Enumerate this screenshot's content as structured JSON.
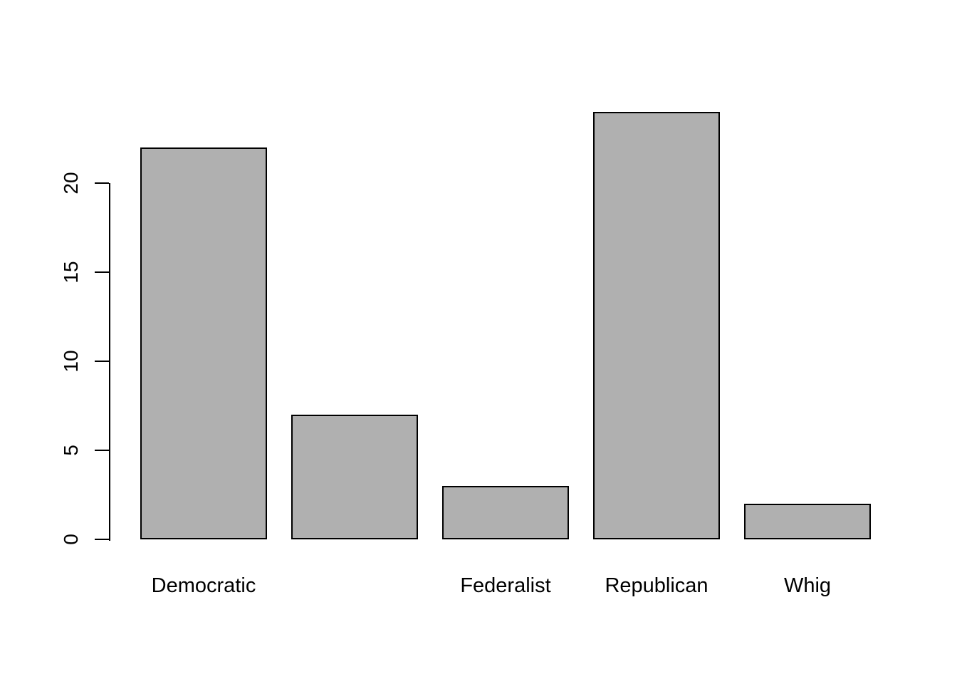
{
  "chart_data": {
    "type": "bar",
    "categories": [
      "Democratic",
      "",
      "Federalist",
      "Republican",
      "Whig"
    ],
    "values": [
      22,
      7,
      3,
      24,
      2
    ],
    "title": "",
    "xlabel": "",
    "ylabel": "",
    "ylim": [
      0,
      20
    ],
    "yticks": [
      0,
      5,
      10,
      15,
      20
    ],
    "grid": false,
    "legend": false,
    "colors": {
      "bar_fill": "#b0b0b0",
      "bar_border": "#000000",
      "axis": "#000000",
      "text": "#000000",
      "background": "#ffffff"
    }
  }
}
